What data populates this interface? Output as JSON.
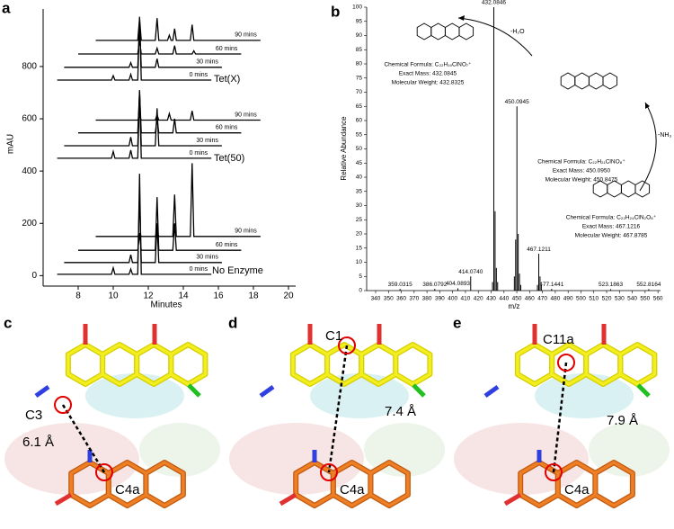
{
  "chart_data": [
    {
      "type": "line",
      "xlabel": "Minutes",
      "ylabel": "mAU",
      "xlim": [
        6,
        20
      ],
      "xticks": [
        8,
        10,
        12,
        14,
        16,
        18,
        20
      ],
      "ylim": [
        -40,
        1020
      ],
      "yticks": [
        0,
        200,
        400,
        600,
        800
      ],
      "annotations": [
        "Tet(X)",
        "Tet(50)",
        "No Enzyme"
      ],
      "series": [
        {
          "name": "90 mins",
          "color": "#000000",
          "x": [
            9.0,
            11.4,
            11.5,
            11.6,
            12.4,
            12.5,
            12.6,
            13.1,
            13.2,
            13.3,
            13.4,
            13.5,
            13.6,
            14.4,
            14.5,
            14.6,
            18.4
          ],
          "values": [
            900,
            900,
            985,
            900,
            900,
            985,
            900,
            900,
            920,
            900,
            900,
            945,
            900,
            900,
            960,
            900,
            900
          ]
        },
        {
          "name": "60 mins",
          "color": "#000000",
          "x": [
            8.0,
            11.4,
            11.5,
            11.6,
            12.4,
            12.5,
            12.6,
            13.4,
            13.5,
            13.6,
            14.5,
            14.6,
            14.7,
            17.3
          ],
          "values": [
            848,
            848,
            900,
            848,
            848,
            870,
            848,
            848,
            880,
            848,
            848,
            860,
            848,
            848
          ]
        },
        {
          "name": "30 mins",
          "color": "#000000",
          "x": [
            7.2,
            10.9,
            11.0,
            11.1,
            11.4,
            11.5,
            11.6,
            12.4,
            12.5,
            12.6,
            16.2
          ],
          "values": [
            797,
            797,
            815,
            797,
            797,
            960,
            797,
            797,
            830,
            797,
            797
          ]
        },
        {
          "name": "0 mins",
          "color": "#000000",
          "x": [
            6.8,
            9.9,
            10.0,
            10.1,
            10.9,
            11.0,
            11.1,
            11.4,
            11.5,
            11.6,
            15.6
          ],
          "values": [
            748,
            748,
            765,
            748,
            748,
            770,
            748,
            748,
            990,
            748,
            748
          ]
        },
        {
          "name": "90 mins",
          "color": "#000000",
          "x": [
            9.0,
            11.4,
            11.5,
            11.6,
            12.4,
            12.5,
            12.6,
            13.1,
            13.2,
            13.3,
            14.4,
            14.5,
            14.6,
            18.4
          ],
          "values": [
            595,
            595,
            610,
            595,
            595,
            615,
            595,
            595,
            620,
            595,
            595,
            630,
            595,
            595
          ]
        },
        {
          "name": "60 mins",
          "color": "#000000",
          "x": [
            8.0,
            11.4,
            11.5,
            11.6,
            12.4,
            12.5,
            12.6,
            13.4,
            13.5,
            13.6,
            17.3
          ],
          "values": [
            546,
            546,
            705,
            546,
            546,
            600,
            546,
            546,
            600,
            546,
            546
          ]
        },
        {
          "name": "30 mins",
          "color": "#000000",
          "x": [
            7.2,
            10.9,
            11.0,
            11.1,
            11.4,
            11.5,
            11.6,
            12.4,
            12.5,
            12.6,
            16.2
          ],
          "values": [
            497,
            497,
            530,
            497,
            497,
            710,
            497,
            497,
            640,
            497,
            497
          ]
        },
        {
          "name": "0 mins",
          "color": "#000000",
          "x": [
            6.8,
            9.9,
            10.0,
            10.1,
            10.9,
            11.0,
            11.1,
            11.4,
            11.5,
            11.6,
            15.6
          ],
          "values": [
            449,
            449,
            475,
            449,
            449,
            480,
            449,
            449,
            700,
            449,
            449
          ]
        },
        {
          "name": "90 mins",
          "color": "#000000",
          "x": [
            9.0,
            11.4,
            11.5,
            11.6,
            12.4,
            12.5,
            12.6,
            13.4,
            13.5,
            13.6,
            14.4,
            14.5,
            14.6,
            18.4
          ],
          "values": [
            150,
            150,
            160,
            150,
            150,
            170,
            150,
            150,
            310,
            150,
            150,
            430,
            150,
            150
          ]
        },
        {
          "name": "60 mins",
          "color": "#000000",
          "x": [
            8.0,
            11.4,
            11.5,
            11.6,
            12.4,
            12.5,
            12.6,
            13.4,
            13.5,
            13.6,
            17.3
          ],
          "values": [
            97,
            97,
            160,
            97,
            97,
            300,
            97,
            97,
            200,
            97,
            97
          ]
        },
        {
          "name": "30 mins",
          "color": "#000000",
          "x": [
            7.2,
            10.9,
            11.0,
            11.1,
            11.4,
            11.5,
            11.6,
            12.4,
            12.5,
            12.6,
            16.2
          ],
          "values": [
            50,
            50,
            80,
            50,
            50,
            310,
            50,
            50,
            200,
            50,
            50
          ]
        },
        {
          "name": "0 mins",
          "color": "#000000",
          "x": [
            6.8,
            9.9,
            10.0,
            10.1,
            10.9,
            11.0,
            11.1,
            11.4,
            11.5,
            11.6,
            15.6
          ],
          "values": [
            5,
            5,
            30,
            5,
            5,
            25,
            5,
            5,
            390,
            5,
            5
          ]
        }
      ]
    },
    {
      "type": "bar",
      "xlabel": "m/z",
      "ylabel": "Relative Abundance",
      "color": "#000000",
      "xlim": [
        333,
        562
      ],
      "xticks": [
        340,
        350,
        360,
        370,
        380,
        390,
        400,
        410,
        420,
        430,
        440,
        450,
        460,
        470,
        480,
        490,
        500,
        510,
        520,
        530,
        540,
        550,
        560
      ],
      "ylim": [
        0,
        100
      ],
      "yticks": [
        0,
        5,
        10,
        15,
        20,
        25,
        30,
        35,
        40,
        45,
        50,
        55,
        60,
        65,
        70,
        75,
        80,
        85,
        90,
        95,
        100
      ],
      "x": [
        359.0315,
        386.0792,
        404.0893,
        414.074,
        432.0846,
        450.0945,
        467.1211,
        477.1441,
        523.1863,
        552.8164
      ],
      "x_labels": [
        "359.0315",
        "386.0792",
        "404.0893",
        "414.0740",
        "432.0846",
        "450.0945",
        "467.1211",
        "477.1441",
        "523.1863",
        "552.8164"
      ],
      "values": [
        0.6,
        0.6,
        0.8,
        5,
        100,
        65,
        13,
        0.6,
        0.5,
        0.5
      ],
      "minor_x": [
        431.08,
        433.09,
        434.08,
        435.08,
        448.09,
        449.09,
        451.1,
        452.09,
        453.09,
        466.1,
        468.12,
        469.12
      ],
      "minor_values": [
        3,
        28,
        8,
        3,
        5,
        18,
        20,
        6,
        2,
        2,
        5,
        2
      ],
      "annotations": [
        "-H₂O",
        "-NH₃"
      ],
      "structures": [
        {
          "formula": "Chemical Formula: C₂₂H₁₉ClNO₇⁺",
          "exact_mass": "Exact Mass: 432.0845",
          "molecular_weight": "Molecular Weight: 432.8325"
        },
        {
          "formula": "Chemical Formula: C₂₂H₂₁ClNO₈⁺",
          "exact_mass": "Exact Mass: 450.0950",
          "molecular_weight": "Molecular Weight: 450.8475"
        },
        {
          "formula": "Chemical Formula: C₂₂H₂₄ClN₂O₈⁺",
          "exact_mass": "Exact Mass: 467.1216",
          "molecular_weight": "Molecular Weight: 467.8785"
        }
      ]
    }
  ],
  "panel_letters": [
    "a",
    "b"
  ],
  "structure_panels": [
    {
      "letter": "c",
      "atom": "C3",
      "distance": "6.1 Å",
      "partner": "C4a"
    },
    {
      "letter": "d",
      "atom": "C1",
      "distance": "7.4 Å",
      "partner": "C4a"
    },
    {
      "letter": "e",
      "atom": "C11a",
      "distance": "7.9 Å",
      "partner": "C4a"
    }
  ]
}
